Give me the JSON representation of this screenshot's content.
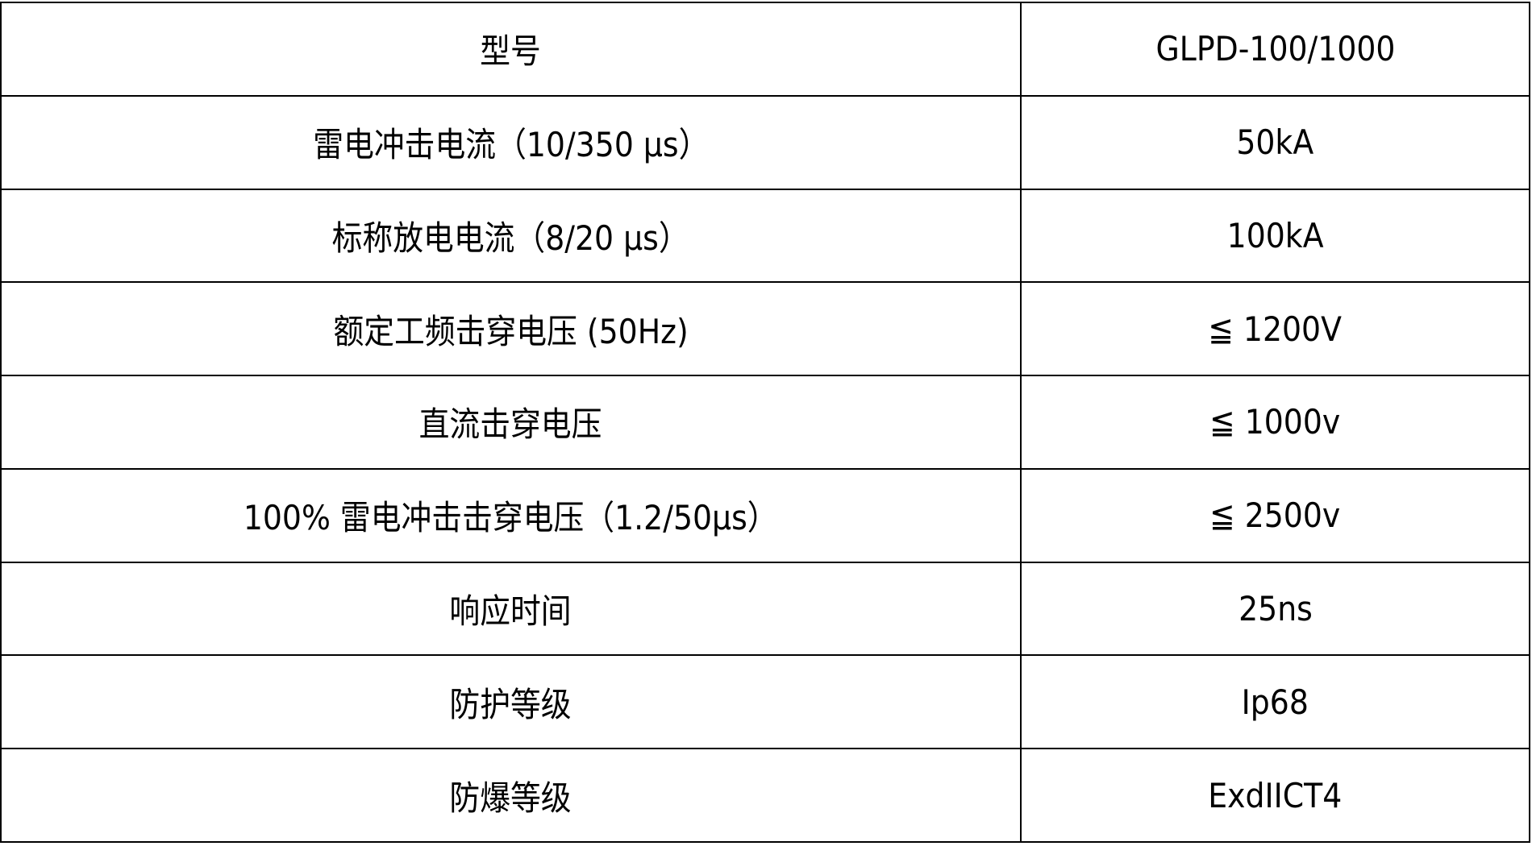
{
  "table": {
    "rows": [
      {
        "label": "型号",
        "value": "GLPD-100/1000"
      },
      {
        "label": "雷电冲击电流（10/350 μs）",
        "value": "50kA"
      },
      {
        "label": "标称放电电流（8/20 μs）",
        "value": "100kA"
      },
      {
        "label": "额定工频击穿电压 (50Hz)",
        "value": "≦ 1200V"
      },
      {
        "label": "直流击穿电压",
        "value": "≦ 1000v"
      },
      {
        "label": "100% 雷电冲击击穿电压（1.2/50μs）",
        "value": "≦ 2500v"
      },
      {
        "label": "响应时间",
        "value": "25ns"
      },
      {
        "label": "防护等级",
        "value": "Ip68"
      },
      {
        "label": "防爆等级",
        "value": "ExdIICT4"
      }
    ]
  }
}
